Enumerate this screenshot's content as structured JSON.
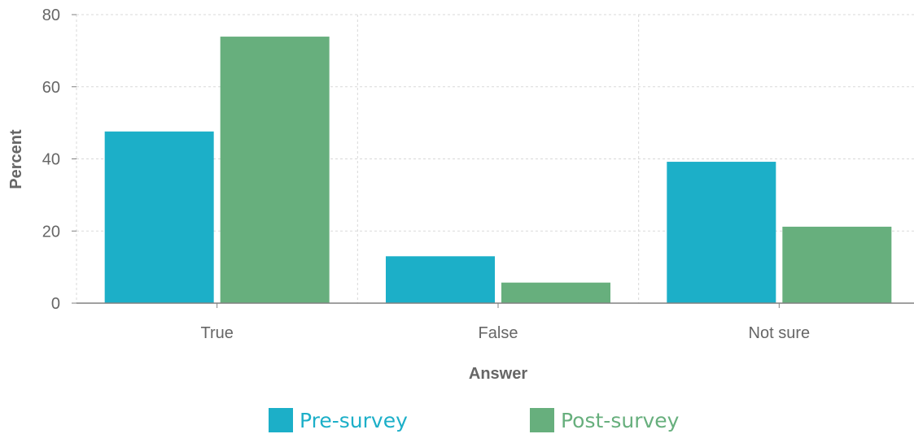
{
  "chart_data": {
    "type": "bar",
    "categories": [
      "True",
      "False",
      "Not sure"
    ],
    "series": [
      {
        "name": "Pre-survey",
        "values": [
          47.6,
          13.0,
          39.2
        ],
        "color": "#1CAFC8"
      },
      {
        "name": "Post-survey",
        "values": [
          73.9,
          5.7,
          21.2
        ],
        "color": "#67AF7D"
      }
    ],
    "xlabel": "Answer",
    "ylabel": "Percent",
    "ylim": [
      0,
      80
    ],
    "yticks": [
      "0",
      "20",
      "40",
      "60",
      "80"
    ],
    "grid": true,
    "legend_position": "bottom"
  }
}
